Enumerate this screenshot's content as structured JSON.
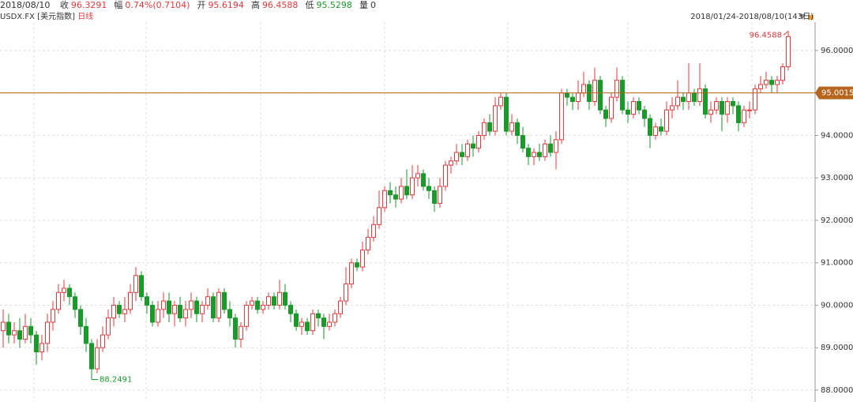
{
  "chart_data": {
    "type": "candlestick",
    "date": "2018/08/10",
    "quote": [
      {
        "label": "收",
        "value": "96.3291",
        "color": "#e4393c"
      },
      {
        "label": "幅",
        "value": "0.74%(0.7104)",
        "color": "#e4393c"
      },
      {
        "label": "开",
        "value": "95.6194",
        "color": "#e4393c"
      },
      {
        "label": "高",
        "value": "96.4588",
        "color": "#e4393c"
      },
      {
        "label": "低",
        "value": "95.5298",
        "color": "#1a9a2a"
      },
      {
        "label": "量",
        "value": "0",
        "color": "#333333"
      }
    ],
    "title": "USDX.FX",
    "subtitle": "[美元指数]",
    "period": "日线",
    "date_range": "2018/01/24-2018/08/10(143日)",
    "up_color": "#e4393c",
    "down_color": "#1a9a2a",
    "last_price": 95.0015,
    "last_price_color": "#b5651d",
    "ylim": [
      87.72,
      96.67
    ],
    "yticks": [
      {
        "value": 88,
        "label": "88.0000"
      },
      {
        "value": 89,
        "label": "89.0000"
      },
      {
        "value": 90,
        "label": "90.0000"
      },
      {
        "value": 91,
        "label": "91.0000"
      },
      {
        "value": 92,
        "label": "92.0000"
      },
      {
        "value": 93,
        "label": "93.0000"
      },
      {
        "value": 94,
        "label": "94.0000"
      },
      {
        "value": 95,
        "label": "95.0000"
      },
      {
        "value": 96,
        "label": "96.0000"
      }
    ],
    "grid": true,
    "open": [
      89.4,
      89.6,
      89.3,
      89.4,
      89.2,
      89.5,
      89.3,
      88.9,
      89.1,
      89.6,
      89.9,
      90.3,
      90.4,
      90.2,
      89.9,
      89.5,
      89.1,
      88.5,
      89.0,
      89.3,
      89.7,
      90.0,
      89.8,
      89.9,
      90.3,
      90.7,
      90.2,
      90.0,
      89.6,
      89.9,
      90.1,
      89.8,
      90.0,
      89.7,
      89.9,
      90.1,
      89.8,
      90.0,
      90.2,
      89.7,
      90.3,
      89.9,
      89.7,
      89.2,
      89.5,
      90.0,
      90.1,
      89.9,
      90.0,
      90.2,
      90.0,
      90.3,
      90.0,
      89.8,
      89.5,
      89.6,
      89.4,
      89.8,
      89.7,
      89.5,
      89.6,
      89.8,
      90.1,
      90.5,
      91.0,
      90.9,
      91.3,
      91.6,
      91.9,
      92.3,
      92.7,
      92.6,
      92.5,
      92.8,
      92.6,
      93.0,
      93.1,
      92.8,
      92.7,
      92.4,
      92.8,
      93.3,
      93.4,
      93.6,
      93.5,
      93.8,
      93.7,
      94.0,
      94.3,
      94.1,
      94.7,
      94.9,
      94.1,
      94.3,
      94.0,
      93.7,
      93.5,
      93.6,
      93.5,
      93.8,
      93.6,
      93.9,
      95.0,
      94.9,
      94.8,
      95.0,
      95.2,
      94.8,
      95.3,
      94.6,
      94.4,
      94.9,
      95.3,
      94.6,
      94.5,
      94.8,
      94.6,
      94.4,
      94.0,
      94.2,
      94.1,
      94.6,
      94.7,
      94.9,
      94.8,
      95.0,
      94.8,
      95.1,
      94.5,
      94.6,
      94.8,
      94.5,
      94.8,
      94.7,
      94.3,
      94.6,
      94.6,
      95.1,
      95.2,
      95.3,
      95.2,
      95.3,
      95.6194
    ],
    "high": [
      89.9,
      89.8,
      89.6,
      89.7,
      89.8,
      89.7,
      89.4,
      89.3,
      89.8,
      90.1,
      90.5,
      90.6,
      90.5,
      90.3,
      90.0,
      89.7,
      89.2,
      89.2,
      89.5,
      89.9,
      90.2,
      90.1,
      90.2,
      90.5,
      90.9,
      90.8,
      90.3,
      90.1,
      90.1,
      90.3,
      90.3,
      90.1,
      90.2,
      90.1,
      90.3,
      90.2,
      90.1,
      90.4,
      90.3,
      90.4,
      90.4,
      90.1,
      89.8,
      89.6,
      90.1,
      90.2,
      90.2,
      90.1,
      90.3,
      90.3,
      90.6,
      90.5,
      90.1,
      89.9,
      89.7,
      89.7,
      89.9,
      89.9,
      89.8,
      89.8,
      89.9,
      90.2,
      90.9,
      91.1,
      91.1,
      91.5,
      91.8,
      92.1,
      92.7,
      92.8,
      92.9,
      92.8,
      93.0,
      93.2,
      93.3,
      93.3,
      93.2,
      93.0,
      92.8,
      93.0,
      93.4,
      93.5,
      93.8,
      93.8,
      93.9,
      94.0,
      94.1,
      94.4,
      94.5,
      94.9,
      95.0,
      95.0,
      94.5,
      94.4,
      94.2,
      93.8,
      93.7,
      93.8,
      93.9,
      94.0,
      94.1,
      95.1,
      95.1,
      95.0,
      95.3,
      95.5,
      95.3,
      95.6,
      95.4,
      94.7,
      95.0,
      95.6,
      95.4,
      94.8,
      94.9,
      94.9,
      94.7,
      94.5,
      94.3,
      94.4,
      94.8,
      94.9,
      95.3,
      95.0,
      95.7,
      95.1,
      95.7,
      95.2,
      94.8,
      94.9,
      94.9,
      94.9,
      94.9,
      94.8,
      94.7,
      94.8,
      95.2,
      95.4,
      95.5,
      95.4,
      95.4,
      95.7,
      96.4588
    ],
    "low": [
      89.0,
      89.1,
      89.1,
      89.0,
      89.1,
      89.1,
      88.6,
      88.7,
      88.9,
      89.4,
      89.8,
      90.1,
      90.0,
      89.7,
      89.3,
      88.9,
      88.2491,
      88.4,
      88.9,
      89.2,
      89.5,
      89.7,
      89.6,
      89.8,
      90.1,
      90.1,
      89.8,
      89.5,
      89.5,
      89.7,
      89.6,
      89.5,
      89.6,
      89.5,
      89.7,
      89.6,
      89.6,
      89.9,
      89.6,
      89.6,
      89.8,
      89.5,
      89.0,
      89.0,
      89.4,
      89.9,
      89.8,
      89.8,
      89.9,
      89.9,
      89.9,
      89.9,
      89.6,
      89.4,
      89.3,
      89.3,
      89.3,
      89.5,
      89.2,
      89.4,
      89.5,
      89.7,
      90.0,
      90.4,
      90.8,
      90.8,
      91.2,
      91.5,
      91.8,
      92.2,
      92.4,
      92.3,
      92.4,
      92.5,
      92.5,
      92.8,
      92.7,
      92.5,
      92.2,
      92.3,
      92.7,
      93.1,
      93.3,
      93.3,
      93.4,
      93.5,
      93.6,
      93.9,
      94.0,
      94.0,
      94.6,
      94.0,
      94.0,
      93.8,
      93.6,
      93.3,
      93.3,
      93.4,
      93.4,
      93.5,
      93.2,
      93.8,
      94.7,
      94.6,
      94.6,
      94.9,
      94.6,
      94.7,
      94.5,
      94.2,
      94.3,
      94.8,
      94.5,
      94.3,
      94.4,
      94.5,
      94.2,
      93.7,
      93.9,
      94.0,
      94.0,
      94.4,
      94.6,
      94.6,
      94.6,
      94.7,
      94.7,
      94.4,
      94.3,
      94.5,
      94.1,
      94.3,
      94.5,
      94.1,
      94.2,
      94.4,
      94.5,
      95.0,
      95.1,
      95.0,
      95.0,
      95.2,
      95.5298
    ],
    "close": [
      89.6,
      89.3,
      89.4,
      89.2,
      89.5,
      89.3,
      88.9,
      89.1,
      89.6,
      89.9,
      90.3,
      90.4,
      90.2,
      89.9,
      89.5,
      89.1,
      88.5,
      89.0,
      89.3,
      89.7,
      90.0,
      89.8,
      89.9,
      90.3,
      90.7,
      90.2,
      90.0,
      89.6,
      89.9,
      90.1,
      89.8,
      90.0,
      89.7,
      89.9,
      90.1,
      89.8,
      90.0,
      90.2,
      89.7,
      90.3,
      89.9,
      89.7,
      89.2,
      89.5,
      90.0,
      90.1,
      89.9,
      90.0,
      90.2,
      90.0,
      90.3,
      90.0,
      89.8,
      89.5,
      89.6,
      89.4,
      89.8,
      89.7,
      89.5,
      89.6,
      89.8,
      90.1,
      90.5,
      91.0,
      90.9,
      91.3,
      91.6,
      91.9,
      92.3,
      92.7,
      92.6,
      92.5,
      92.8,
      92.6,
      93.0,
      93.1,
      92.8,
      92.7,
      92.4,
      92.8,
      93.3,
      93.4,
      93.6,
      93.5,
      93.8,
      93.7,
      94.0,
      94.3,
      94.1,
      94.7,
      94.9,
      94.1,
      94.3,
      94.0,
      93.7,
      93.5,
      93.6,
      93.5,
      93.8,
      93.6,
      93.9,
      95.0,
      94.9,
      94.8,
      95.0,
      95.2,
      94.8,
      95.3,
      94.6,
      94.4,
      94.9,
      95.3,
      94.6,
      94.5,
      94.8,
      94.6,
      94.4,
      94.0,
      94.2,
      94.1,
      94.6,
      94.7,
      94.9,
      94.8,
      95.0,
      94.8,
      95.1,
      94.5,
      94.6,
      94.8,
      94.5,
      94.8,
      94.7,
      94.3,
      94.6,
      94.6,
      95.1,
      95.2,
      95.3,
      95.2,
      95.3,
      95.62,
      96.3291
    ]
  }
}
